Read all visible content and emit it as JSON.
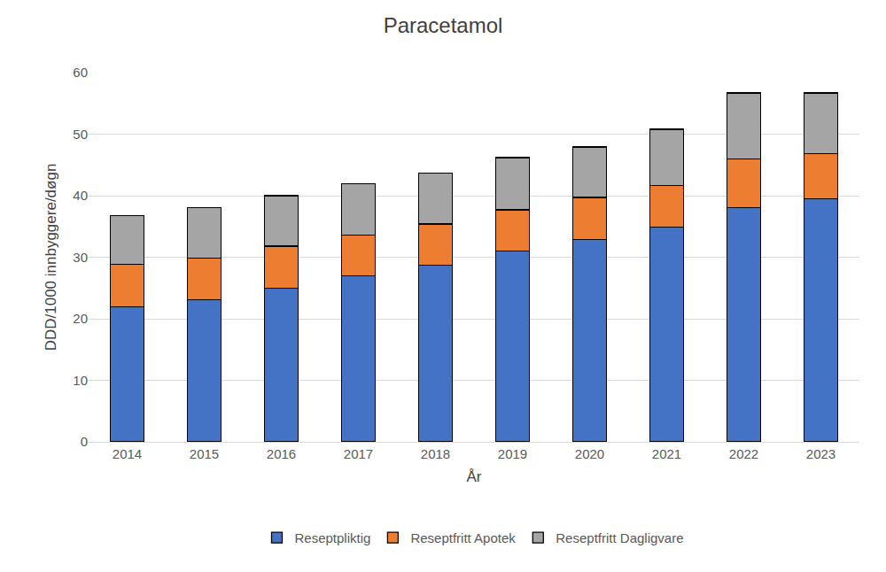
{
  "chart_data": {
    "type": "bar",
    "title": "Paracetamol",
    "x_label": "År",
    "y_label": "DDD/1000 innbyggere/døgn",
    "categories": [
      "2014",
      "2015",
      "2016",
      "2017",
      "2018",
      "2019",
      "2020",
      "2021",
      "2022",
      "2023"
    ],
    "series": [
      {
        "name": "Reseptpliktig",
        "color": "#4472c4",
        "values": [
          21.9,
          23.1,
          25.0,
          27.0,
          28.7,
          31.0,
          32.9,
          34.9,
          38.1,
          39.5
        ]
      },
      {
        "name": "Reseptfritt Apotek",
        "color": "#ed7d31",
        "values": [
          7.0,
          6.8,
          6.8,
          6.6,
          6.7,
          6.7,
          6.8,
          6.8,
          7.9,
          7.3
        ]
      },
      {
        "name": "Reseptfritt Dagligvare",
        "color": "#a5a5a5",
        "values": [
          7.9,
          8.2,
          8.2,
          8.3,
          8.3,
          8.5,
          8.2,
          9.1,
          10.7,
          9.9
        ]
      }
    ],
    "ylim": [
      0,
      60
    ],
    "yticks": [
      0,
      10,
      20,
      30,
      40,
      50,
      60
    ],
    "stacked": true,
    "grid": true,
    "legend": "bottom"
  }
}
